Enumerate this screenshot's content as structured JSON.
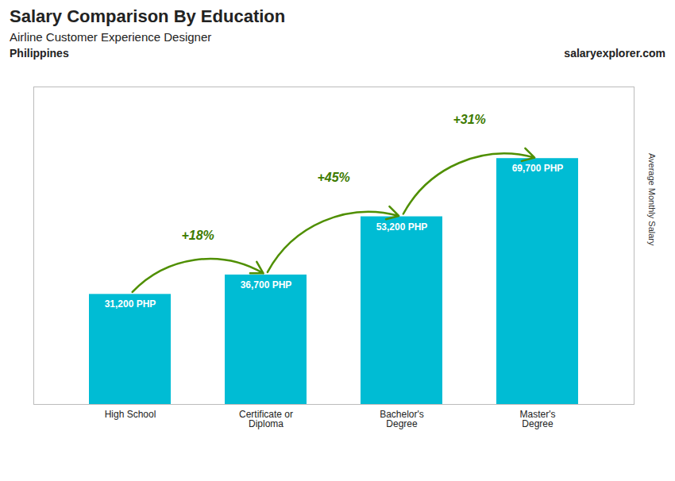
{
  "chart_data": {
    "type": "bar",
    "title": "Salary Comparison By Education",
    "subtitle": "Airline Customer Experience Designer",
    "ylabel": "Average Monthly Salary",
    "categories": [
      "High School",
      "Certificate or\nDiploma",
      "Bachelor's\nDegree",
      "Master's\nDegree"
    ],
    "values": [
      31200,
      36700,
      53200,
      69700
    ],
    "value_labels": [
      "31,200 PHP",
      "36,700 PHP",
      "53,200 PHP",
      "69,700 PHP"
    ],
    "data_labels": true,
    "color": "#00bcd4",
    "ylim": [
      0,
      90000
    ],
    "grid": false,
    "tick_labels": "x",
    "annotations": [
      {
        "text": "Philippines"
      },
      {
        "text": "salaryexplorer.com"
      },
      {
        "text": "+18%",
        "from": "High School",
        "to": "Certificate or\nDiploma"
      },
      {
        "text": "+45%",
        "from": "Certificate or\nDiploma",
        "to": "Bachelor's\nDegree"
      },
      {
        "text": "+31%",
        "from": "Bachelor's\nDegree",
        "to": "Master's\nDegree"
      }
    ]
  }
}
